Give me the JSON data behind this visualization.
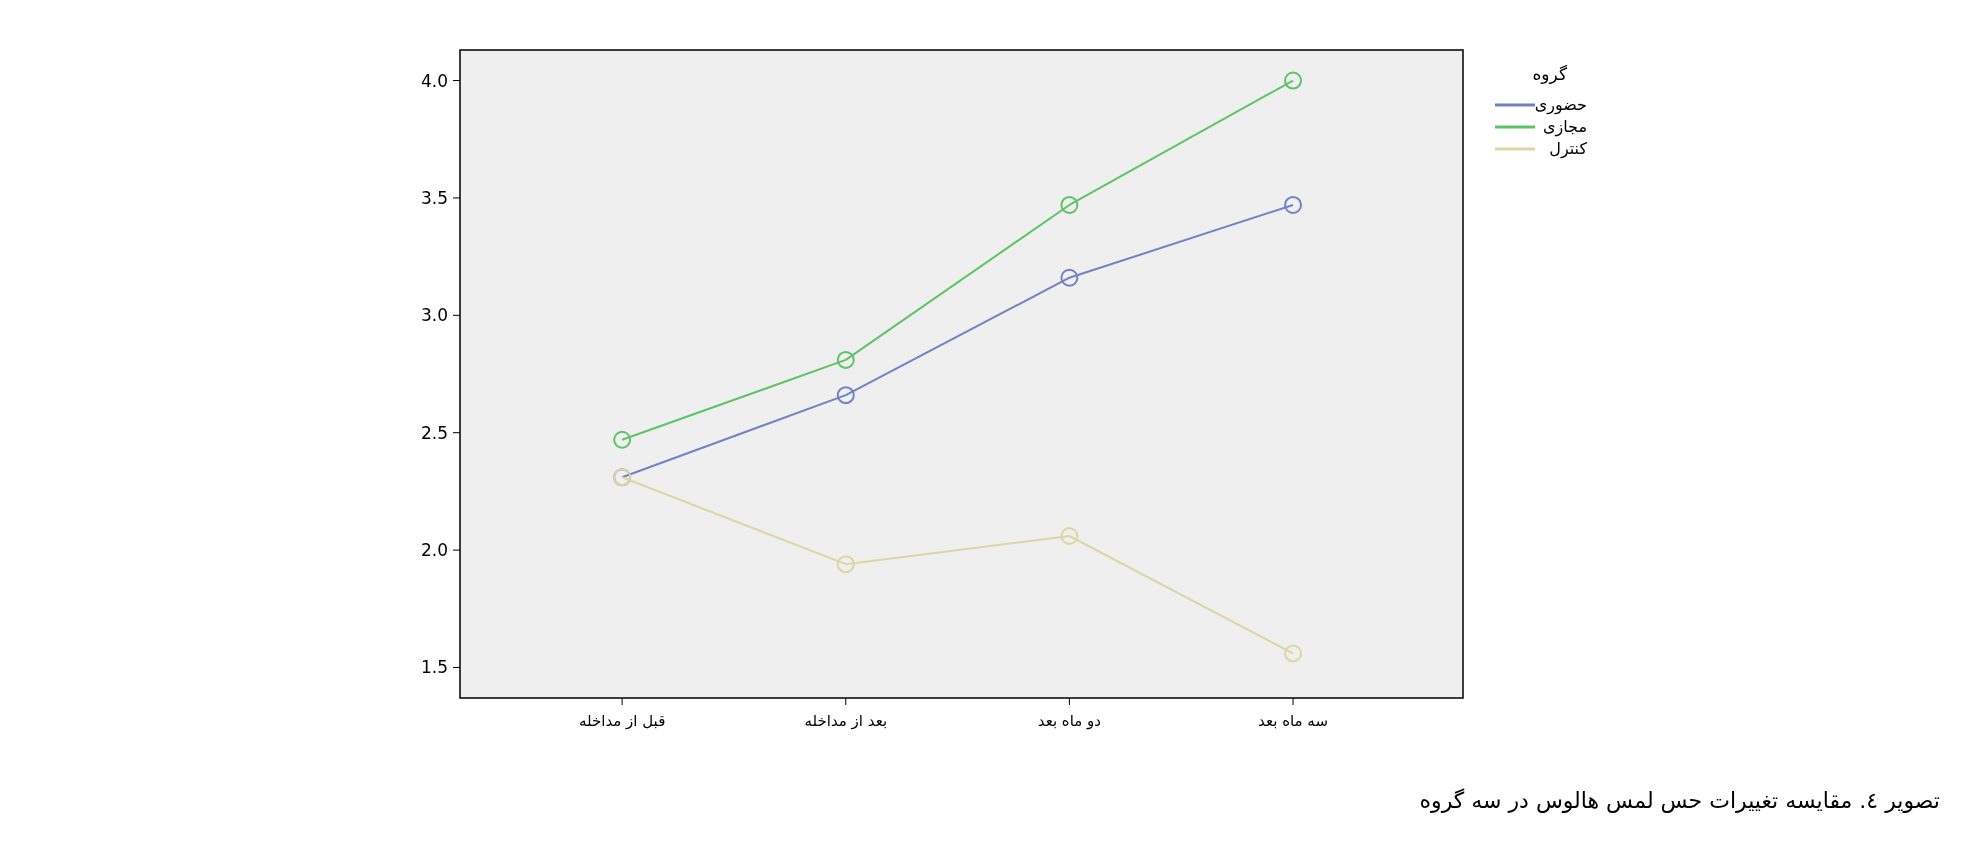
{
  "chart_data": {
    "type": "line",
    "categories": [
      "قبل از مداخله",
      "بعد از مداخله",
      "دو ماه بعد",
      "سه ماه بعد"
    ],
    "series": [
      {
        "name": "حضوری",
        "color": "#6f83c4",
        "values": [
          2.31,
          2.66,
          3.16,
          3.47
        ]
      },
      {
        "name": "مجازی",
        "color": "#5cc466",
        "values": [
          2.47,
          2.81,
          3.47,
          4.0
        ]
      },
      {
        "name": "کنترل",
        "color": "#ddd5a4",
        "values": [
          2.31,
          1.94,
          2.06,
          1.56
        ]
      }
    ],
    "ylim": [
      1.37,
      4.13
    ],
    "yticks": [
      1.5,
      {
        "value": 2,
        "label": "2.0"
      },
      2.5,
      {
        "value": 3,
        "label": "3.0"
      },
      3.5,
      {
        "value": 4,
        "label": "4.0"
      }
    ],
    "legend": "top right",
    "legend_title": "گروه",
    "marker": "circle",
    "line_style": "solid",
    "grid": false,
    "annotations": [
      "تصویر ٤. مقایسه تغییرات حس لمس هالوس در سه گروه"
    ]
  }
}
